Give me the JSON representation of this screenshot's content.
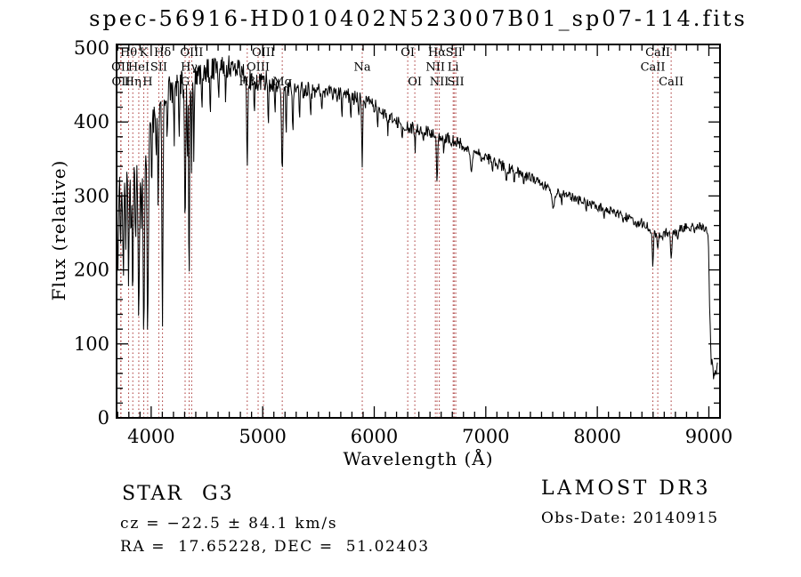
{
  "title": "spec-56916-HD010402N523007B01_sp07-114.fits",
  "footer": {
    "object_class": "STAR",
    "subclass": "G3",
    "cz": "cz = −22.5 ± 84.1 km/s",
    "ra_dec": "RA =  17.65228, DEC =  51.02403",
    "survey": "LAMOST DR3",
    "obs_date": "Obs-Date: 20140915"
  },
  "chart_data": {
    "type": "line",
    "title": "spec-56916-HD010402N523007B01_sp07-114.fits",
    "xlabel": "Wavelength (Å)",
    "ylabel": "Flux (relative)",
    "xlim": [
      3690,
      9100
    ],
    "ylim": [
      0,
      500
    ],
    "x_ticks": {
      "major": [
        4000,
        5000,
        6000,
        7000,
        8000,
        9000
      ],
      "minor_step": 100
    },
    "y_ticks": {
      "major": [
        0,
        100,
        200,
        300,
        400,
        500
      ],
      "minor_step": 20
    },
    "grid": false,
    "line_color": "#000000",
    "frame_color": "#000000",
    "marker_color": "#a83232",
    "label_rows_note": "row 1 = top label row, row 3 = lowest label row",
    "spectral_lines": [
      {
        "label": "OII",
        "wavelength": 3727.1,
        "row": 2
      },
      {
        "label": "OII",
        "wavelength": 3729.9,
        "row": 3
      },
      {
        "label": "Hθ",
        "wavelength": 3798.0,
        "row": 1
      },
      {
        "label": "Hη",
        "wavelength": 3835.4,
        "row": 3
      },
      {
        "label": "HeI",
        "wavelength": 3889.0,
        "row": 2
      },
      {
        "label": "K",
        "wavelength": 3933.7,
        "row": 1
      },
      {
        "label": "H",
        "wavelength": 3968.5,
        "row": 3
      },
      {
        "label": "SII",
        "wavelength": 4068.6,
        "row": 2
      },
      {
        "label": "Hδ",
        "wavelength": 4101.7,
        "row": 1
      },
      {
        "label": "G",
        "wavelength": 4304.4,
        "row": 3
      },
      {
        "label": "Hγ",
        "wavelength": 4340.5,
        "row": 2
      },
      {
        "label": "OIII",
        "wavelength": 4363.2,
        "row": 1
      },
      {
        "label": "Hβ",
        "wavelength": 4861.3,
        "row": 3
      },
      {
        "label": "OIII",
        "wavelength": 4958.9,
        "row": 2
      },
      {
        "label": "OIII",
        "wavelength": 5006.8,
        "row": 1
      },
      {
        "label": "Mg",
        "wavelength": 5175.3,
        "row": 3
      },
      {
        "label": "Na",
        "wavelength": 5892.5,
        "row": 2
      },
      {
        "label": "OI",
        "wavelength": 6300.3,
        "row": 1
      },
      {
        "label": "OI",
        "wavelength": 6363.8,
        "row": 3
      },
      {
        "label": "NII",
        "wavelength": 6548.0,
        "row": 2
      },
      {
        "label": "Hα",
        "wavelength": 6562.8,
        "row": 1
      },
      {
        "label": "NII",
        "wavelength": 6583.5,
        "row": 3
      },
      {
        "label": "Li",
        "wavelength": 6707.8,
        "row": 2
      },
      {
        "label": "SII",
        "wavelength": 6716.4,
        "row": 1
      },
      {
        "label": "SII",
        "wavelength": 6730.8,
        "row": 3
      },
      {
        "label": "CaII",
        "wavelength": 8498.0,
        "row": 2
      },
      {
        "label": "CaII",
        "wavelength": 8542.1,
        "row": 1
      },
      {
        "label": "CaII",
        "wavelength": 8662.1,
        "row": 3
      }
    ],
    "continuum_keypoints": [
      [
        3690,
        330
      ],
      [
        3715,
        322
      ],
      [
        3740,
        330
      ],
      [
        3770,
        336
      ],
      [
        3800,
        340
      ],
      [
        3830,
        344
      ],
      [
        3860,
        346
      ],
      [
        3890,
        352
      ],
      [
        3920,
        362
      ],
      [
        3950,
        372
      ],
      [
        3980,
        384
      ],
      [
        4010,
        402
      ],
      [
        4050,
        418
      ],
      [
        4100,
        432
      ],
      [
        4150,
        442
      ],
      [
        4210,
        448
      ],
      [
        4270,
        452
      ],
      [
        4330,
        456
      ],
      [
        4400,
        462
      ],
      [
        4480,
        467
      ],
      [
        4560,
        471
      ],
      [
        4650,
        475
      ],
      [
        4720,
        476
      ],
      [
        4780,
        471
      ],
      [
        4840,
        464
      ],
      [
        4900,
        456
      ],
      [
        4960,
        454
      ],
      [
        5020,
        456
      ],
      [
        5080,
        452
      ],
      [
        5150,
        450
      ],
      [
        5220,
        446
      ],
      [
        5300,
        444
      ],
      [
        5400,
        443
      ],
      [
        5500,
        441
      ],
      [
        5600,
        439
      ],
      [
        5700,
        437
      ],
      [
        5800,
        434
      ],
      [
        5900,
        430
      ],
      [
        6000,
        422
      ],
      [
        6100,
        411
      ],
      [
        6200,
        401
      ],
      [
        6300,
        394
      ],
      [
        6400,
        389
      ],
      [
        6500,
        386
      ],
      [
        6600,
        381
      ],
      [
        6700,
        375
      ],
      [
        6800,
        369
      ],
      [
        6900,
        359
      ],
      [
        7000,
        352
      ],
      [
        7100,
        344
      ],
      [
        7200,
        337
      ],
      [
        7300,
        331
      ],
      [
        7400,
        324
      ],
      [
        7500,
        317
      ],
      [
        7600,
        306
      ],
      [
        7700,
        303
      ],
      [
        7800,
        297
      ],
      [
        7900,
        291
      ],
      [
        8000,
        286
      ],
      [
        8100,
        280
      ],
      [
        8200,
        274
      ],
      [
        8300,
        269
      ],
      [
        8400,
        263
      ],
      [
        8470,
        256
      ],
      [
        8530,
        250
      ],
      [
        8600,
        251
      ],
      [
        8700,
        252
      ],
      [
        8780,
        257
      ],
      [
        8860,
        259
      ],
      [
        8930,
        259
      ],
      [
        8988,
        253
      ],
      [
        8998,
        225
      ],
      [
        9008,
        140
      ],
      [
        9020,
        80
      ],
      [
        9040,
        58
      ],
      [
        9060,
        60
      ],
      [
        9078,
        70
      ]
    ],
    "absorption_dips": [
      [
        3700,
        185,
        5
      ],
      [
        3727,
        240,
        5
      ],
      [
        3750,
        195,
        5
      ],
      [
        3772,
        240,
        4
      ],
      [
        3798,
        182,
        5
      ],
      [
        3820,
        235,
        4
      ],
      [
        3835,
        158,
        5
      ],
      [
        3860,
        235,
        4
      ],
      [
        3889,
        128,
        6
      ],
      [
        3912,
        245,
        4
      ],
      [
        3934,
        121,
        6
      ],
      [
        3969,
        118,
        6
      ],
      [
        4005,
        300,
        3
      ],
      [
        4045,
        330,
        3
      ],
      [
        4063,
        285,
        4
      ],
      [
        4101,
        126,
        5
      ],
      [
        4144,
        355,
        3
      ],
      [
        4206,
        370,
        3
      ],
      [
        4250,
        365,
        3
      ],
      [
        4304,
        255,
        5
      ],
      [
        4325,
        330,
        3
      ],
      [
        4340,
        165,
        4
      ],
      [
        4363,
        320,
        3
      ],
      [
        4383,
        335,
        3
      ],
      [
        4455,
        405,
        3
      ],
      [
        4530,
        400,
        3
      ],
      [
        4605,
        420,
        3
      ],
      [
        4668,
        425,
        3
      ],
      [
        4861,
        338,
        5
      ],
      [
        4925,
        405,
        3
      ],
      [
        5050,
        388,
        3
      ],
      [
        5110,
        408,
        3
      ],
      [
        5175,
        332,
        6
      ],
      [
        5210,
        375,
        3
      ],
      [
        5270,
        385,
        4
      ],
      [
        5330,
        400,
        3
      ],
      [
        5430,
        402,
        3
      ],
      [
        5530,
        408,
        3
      ],
      [
        5710,
        400,
        3
      ],
      [
        5790,
        398,
        3
      ],
      [
        5860,
        400,
        3
      ],
      [
        5892,
        338,
        4
      ],
      [
        6030,
        390,
        3
      ],
      [
        6122,
        378,
        3
      ],
      [
        6250,
        372,
        3
      ],
      [
        6366,
        358,
        3
      ],
      [
        6440,
        370,
        3
      ],
      [
        6563,
        317,
        5
      ],
      [
        6623,
        355,
        3
      ],
      [
        6870,
        333,
        9
      ],
      [
        7060,
        330,
        4
      ],
      [
        7185,
        318,
        5
      ],
      [
        7255,
        315,
        4
      ],
      [
        7340,
        312,
        3
      ],
      [
        7605,
        284,
        10
      ],
      [
        7680,
        288,
        4
      ],
      [
        7900,
        276,
        3
      ],
      [
        8060,
        268,
        3
      ],
      [
        8230,
        260,
        3
      ],
      [
        8350,
        254,
        3
      ],
      [
        8498,
        205,
        5
      ],
      [
        8542,
        227,
        5
      ],
      [
        8585,
        240,
        3
      ],
      [
        8662,
        214,
        6
      ],
      [
        8720,
        240,
        3
      ],
      [
        8870,
        248,
        3
      ]
    ],
    "noise_profile": [
      [
        3690,
        55
      ],
      [
        3800,
        52
      ],
      [
        3900,
        48
      ],
      [
        3980,
        40
      ],
      [
        4050,
        28
      ],
      [
        4150,
        24
      ],
      [
        4300,
        22
      ],
      [
        4500,
        17
      ],
      [
        4700,
        15
      ],
      [
        5000,
        14
      ],
      [
        5300,
        12
      ],
      [
        5600,
        11
      ],
      [
        5900,
        10
      ],
      [
        6200,
        9
      ],
      [
        6500,
        8
      ],
      [
        6800,
        8
      ],
      [
        7200,
        8
      ],
      [
        7600,
        7
      ],
      [
        8000,
        6
      ],
      [
        8400,
        7
      ],
      [
        8700,
        7
      ],
      [
        8980,
        5
      ],
      [
        9010,
        8
      ],
      [
        9078,
        6
      ]
    ],
    "sample_step": 5,
    "noise_seed": 20140915
  }
}
